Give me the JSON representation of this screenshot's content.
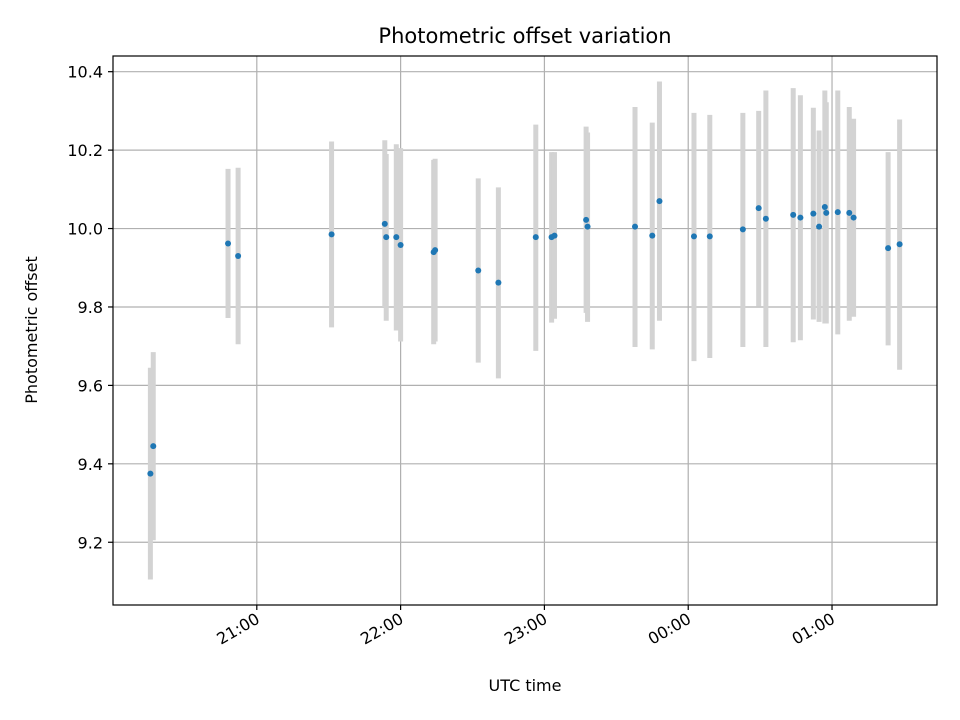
{
  "chart_data": {
    "type": "scatter",
    "title": "Photometric offset variation",
    "xlabel": "UTC time",
    "ylabel": "Photometric offset",
    "x_unit": "UTC hours (continuous, crossing midnight)",
    "xlim": [
      20.0,
      25.73
    ],
    "ylim": [
      9.04,
      10.44
    ],
    "x_ticks": [
      {
        "value": 21,
        "label": "21:00"
      },
      {
        "value": 22,
        "label": "22:00"
      },
      {
        "value": 23,
        "label": "23:00"
      },
      {
        "value": 24,
        "label": "00:00"
      },
      {
        "value": 25,
        "label": "01:00"
      }
    ],
    "y_ticks": [
      {
        "value": 9.2,
        "label": "9.2"
      },
      {
        "value": 9.4,
        "label": "9.4"
      },
      {
        "value": 9.6,
        "label": "9.6"
      },
      {
        "value": 9.8,
        "label": "9.8"
      },
      {
        "value": 10.0,
        "label": "10.0"
      },
      {
        "value": 10.2,
        "label": "10.2"
      },
      {
        "value": 10.4,
        "label": "10.4"
      }
    ],
    "grid": true,
    "colors": {
      "point": "#1f77b4",
      "errorbar": "#d3d3d3"
    },
    "series": [
      {
        "points": [
          {
            "x": 20.26,
            "y": 9.375,
            "lo": 9.105,
            "hi": 9.645
          },
          {
            "x": 20.28,
            "y": 9.445,
            "lo": 9.205,
            "hi": 9.685
          },
          {
            "x": 20.8,
            "y": 9.962,
            "lo": 9.772,
            "hi": 10.152
          },
          {
            "x": 20.87,
            "y": 9.93,
            "lo": 9.705,
            "hi": 10.155
          },
          {
            "x": 21.52,
            "y": 9.985,
            "lo": 9.748,
            "hi": 10.222
          },
          {
            "x": 21.89,
            "y": 10.012,
            "lo": 9.8,
            "hi": 10.225
          },
          {
            "x": 21.9,
            "y": 9.978,
            "lo": 9.765,
            "hi": 10.19
          },
          {
            "x": 21.97,
            "y": 9.978,
            "lo": 9.74,
            "hi": 10.215
          },
          {
            "x": 22.0,
            "y": 9.958,
            "lo": 9.712,
            "hi": 10.205
          },
          {
            "x": 22.23,
            "y": 9.94,
            "lo": 9.705,
            "hi": 10.175
          },
          {
            "x": 22.24,
            "y": 9.945,
            "lo": 9.712,
            "hi": 10.178
          },
          {
            "x": 22.54,
            "y": 9.893,
            "lo": 9.658,
            "hi": 10.128
          },
          {
            "x": 22.68,
            "y": 9.862,
            "lo": 9.618,
            "hi": 10.105
          },
          {
            "x": 22.94,
            "y": 9.978,
            "lo": 9.688,
            "hi": 10.265
          },
          {
            "x": 23.05,
            "y": 9.978,
            "lo": 9.76,
            "hi": 10.195
          },
          {
            "x": 23.07,
            "y": 9.982,
            "lo": 9.77,
            "hi": 10.195
          },
          {
            "x": 23.29,
            "y": 10.022,
            "lo": 9.785,
            "hi": 10.26
          },
          {
            "x": 23.3,
            "y": 10.005,
            "lo": 9.762,
            "hi": 10.245
          },
          {
            "x": 23.63,
            "y": 10.005,
            "lo": 9.698,
            "hi": 10.31
          },
          {
            "x": 23.75,
            "y": 9.982,
            "lo": 9.692,
            "hi": 10.27
          },
          {
            "x": 23.8,
            "y": 10.07,
            "lo": 9.765,
            "hi": 10.375
          },
          {
            "x": 24.04,
            "y": 9.98,
            "lo": 9.662,
            "hi": 10.295
          },
          {
            "x": 24.15,
            "y": 9.98,
            "lo": 9.67,
            "hi": 10.29
          },
          {
            "x": 24.38,
            "y": 9.998,
            "lo": 9.698,
            "hi": 10.295
          },
          {
            "x": 24.49,
            "y": 10.052,
            "lo": 9.802,
            "hi": 10.3
          },
          {
            "x": 24.54,
            "y": 10.025,
            "lo": 9.698,
            "hi": 10.352
          },
          {
            "x": 24.73,
            "y": 10.035,
            "lo": 9.71,
            "hi": 10.358
          },
          {
            "x": 24.78,
            "y": 10.028,
            "lo": 9.715,
            "hi": 10.34
          },
          {
            "x": 24.87,
            "y": 10.038,
            "lo": 9.768,
            "hi": 10.308
          },
          {
            "x": 24.91,
            "y": 10.005,
            "lo": 9.762,
            "hi": 10.25
          },
          {
            "x": 24.95,
            "y": 10.055,
            "lo": 9.758,
            "hi": 10.352
          },
          {
            "x": 24.96,
            "y": 10.04,
            "lo": 9.758,
            "hi": 10.322
          },
          {
            "x": 25.04,
            "y": 10.042,
            "lo": 9.73,
            "hi": 10.352
          },
          {
            "x": 25.12,
            "y": 10.04,
            "lo": 9.765,
            "hi": 10.31
          },
          {
            "x": 25.15,
            "y": 10.028,
            "lo": 9.775,
            "hi": 10.28
          },
          {
            "x": 25.39,
            "y": 9.95,
            "lo": 9.702,
            "hi": 10.195
          },
          {
            "x": 25.47,
            "y": 9.96,
            "lo": 9.64,
            "hi": 10.278
          }
        ]
      }
    ]
  }
}
